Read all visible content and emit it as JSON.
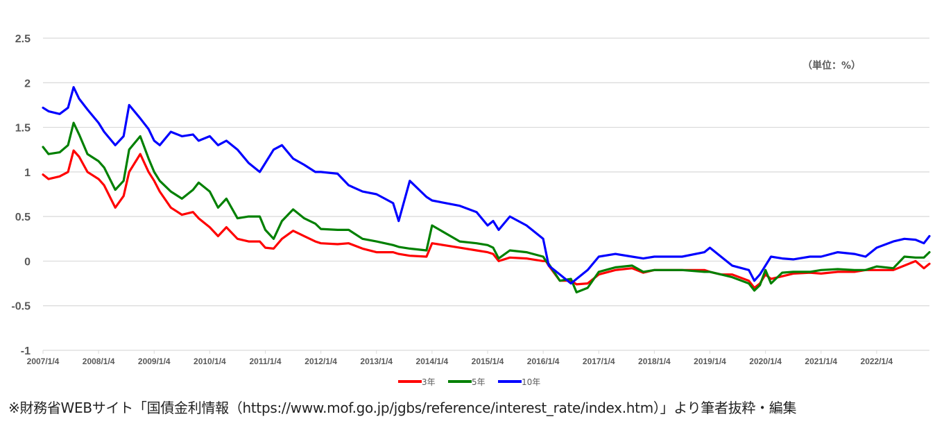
{
  "chart_data": {
    "type": "line",
    "title": "",
    "xlabel": "",
    "ylabel": "",
    "unit_label": "（単位：%）",
    "ylim": [
      -1,
      2.5
    ],
    "y_ticks": [
      "2.5",
      "2",
      "1.5",
      "1",
      "0.5",
      "0",
      "-0.5",
      "-1"
    ],
    "x_tick_labels": [
      "2007/1/4",
      "2008/1/4",
      "2009/1/4",
      "2010/1/4",
      "2011/1/4",
      "2012/1/4",
      "2013/1/4",
      "2014/1/4",
      "2015/1/4",
      "2016/1/4",
      "2017/1/4",
      "2018/1/4",
      "2019/1/4",
      "2020/1/4",
      "2021/1/4",
      "2022/1/4"
    ],
    "x_range": [
      2007.0,
      2022.95
    ],
    "grid": true,
    "legend_position": "bottom-center",
    "series": [
      {
        "name": "3年",
        "color": "#ff0000",
        "x": [
          2007.0,
          2007.1,
          2007.3,
          2007.45,
          2007.55,
          2007.65,
          2007.8,
          2008.0,
          2008.1,
          2008.3,
          2008.45,
          2008.55,
          2008.75,
          2008.9,
          2009.0,
          2009.1,
          2009.3,
          2009.5,
          2009.7,
          2009.8,
          2010.0,
          2010.15,
          2010.3,
          2010.5,
          2010.7,
          2010.9,
          2011.0,
          2011.15,
          2011.3,
          2011.5,
          2011.7,
          2011.9,
          2012.0,
          2012.3,
          2012.5,
          2012.75,
          2013.0,
          2013.15,
          2013.3,
          2013.4,
          2013.6,
          2013.9,
          2014.0,
          2014.5,
          2014.8,
          2015.0,
          2015.1,
          2015.2,
          2015.4,
          2015.7,
          2016.0,
          2016.05,
          2016.1,
          2016.3,
          2016.5,
          2016.6,
          2016.8,
          2017.0,
          2017.3,
          2017.6,
          2017.8,
          2018.0,
          2018.5,
          2018.9,
          2019.0,
          2019.2,
          2019.4,
          2019.7,
          2019.8,
          2019.9,
          2020.0,
          2020.1,
          2020.3,
          2020.5,
          2020.8,
          2021.0,
          2021.3,
          2021.6,
          2021.8,
          2022.0,
          2022.3,
          2022.5,
          2022.7,
          2022.85,
          2022.95
        ],
        "values": [
          0.97,
          0.92,
          0.95,
          1.0,
          1.24,
          1.17,
          1.0,
          0.92,
          0.85,
          0.6,
          0.73,
          1.0,
          1.2,
          1.0,
          0.9,
          0.78,
          0.6,
          0.52,
          0.55,
          0.48,
          0.38,
          0.28,
          0.38,
          0.25,
          0.22,
          0.22,
          0.15,
          0.14,
          0.25,
          0.34,
          0.28,
          0.22,
          0.2,
          0.19,
          0.2,
          0.14,
          0.1,
          0.1,
          0.1,
          0.08,
          0.06,
          0.05,
          0.2,
          0.15,
          0.12,
          0.1,
          0.08,
          0.0,
          0.04,
          0.03,
          0.0,
          0.0,
          -0.05,
          -0.22,
          -0.22,
          -0.26,
          -0.25,
          -0.15,
          -0.1,
          -0.08,
          -0.13,
          -0.1,
          -0.1,
          -0.1,
          -0.12,
          -0.15,
          -0.15,
          -0.22,
          -0.3,
          -0.25,
          -0.15,
          -0.2,
          -0.17,
          -0.14,
          -0.13,
          -0.14,
          -0.12,
          -0.12,
          -0.1,
          -0.1,
          -0.1,
          -0.05,
          0.0,
          -0.08,
          -0.03
        ]
      },
      {
        "name": "5年",
        "color": "#008000",
        "x": [
          2007.0,
          2007.1,
          2007.3,
          2007.45,
          2007.55,
          2007.65,
          2007.8,
          2008.0,
          2008.1,
          2008.3,
          2008.45,
          2008.55,
          2008.75,
          2008.9,
          2009.0,
          2009.1,
          2009.3,
          2009.5,
          2009.7,
          2009.8,
          2010.0,
          2010.15,
          2010.3,
          2010.5,
          2010.7,
          2010.9,
          2011.0,
          2011.15,
          2011.3,
          2011.5,
          2011.7,
          2011.9,
          2012.0,
          2012.3,
          2012.5,
          2012.75,
          2013.0,
          2013.15,
          2013.3,
          2013.4,
          2013.6,
          2013.9,
          2014.0,
          2014.5,
          2014.8,
          2015.0,
          2015.1,
          2015.2,
          2015.4,
          2015.7,
          2016.0,
          2016.05,
          2016.1,
          2016.3,
          2016.5,
          2016.6,
          2016.8,
          2017.0,
          2017.3,
          2017.6,
          2017.8,
          2018.0,
          2018.5,
          2018.9,
          2019.0,
          2019.2,
          2019.4,
          2019.7,
          2019.8,
          2019.9,
          2020.0,
          2020.1,
          2020.3,
          2020.5,
          2020.8,
          2021.0,
          2021.3,
          2021.6,
          2021.8,
          2022.0,
          2022.3,
          2022.5,
          2022.7,
          2022.85,
          2022.95
        ],
        "values": [
          1.28,
          1.2,
          1.22,
          1.3,
          1.55,
          1.42,
          1.2,
          1.12,
          1.05,
          0.8,
          0.9,
          1.25,
          1.4,
          1.15,
          1.0,
          0.9,
          0.78,
          0.7,
          0.8,
          0.88,
          0.78,
          0.6,
          0.7,
          0.48,
          0.5,
          0.5,
          0.35,
          0.25,
          0.45,
          0.58,
          0.48,
          0.42,
          0.36,
          0.35,
          0.35,
          0.25,
          0.22,
          0.2,
          0.18,
          0.16,
          0.14,
          0.12,
          0.4,
          0.22,
          0.2,
          0.18,
          0.15,
          0.03,
          0.12,
          0.1,
          0.05,
          0.0,
          -0.03,
          -0.22,
          -0.2,
          -0.35,
          -0.3,
          -0.12,
          -0.07,
          -0.05,
          -0.12,
          -0.1,
          -0.1,
          -0.12,
          -0.12,
          -0.15,
          -0.18,
          -0.25,
          -0.33,
          -0.27,
          -0.1,
          -0.25,
          -0.13,
          -0.12,
          -0.12,
          -0.1,
          -0.09,
          -0.1,
          -0.1,
          -0.06,
          -0.08,
          0.05,
          0.04,
          0.04,
          0.1
        ]
      },
      {
        "name": "10年",
        "color": "#0000ff",
        "x": [
          2007.0,
          2007.1,
          2007.3,
          2007.45,
          2007.55,
          2007.65,
          2007.8,
          2008.0,
          2008.1,
          2008.3,
          2008.45,
          2008.55,
          2008.75,
          2008.9,
          2009.0,
          2009.1,
          2009.3,
          2009.5,
          2009.7,
          2009.8,
          2010.0,
          2010.15,
          2010.3,
          2010.5,
          2010.7,
          2010.9,
          2011.0,
          2011.15,
          2011.3,
          2011.5,
          2011.7,
          2011.9,
          2012.0,
          2012.3,
          2012.5,
          2012.75,
          2013.0,
          2013.15,
          2013.3,
          2013.4,
          2013.6,
          2013.9,
          2014.0,
          2014.5,
          2014.8,
          2015.0,
          2015.1,
          2015.2,
          2015.4,
          2015.7,
          2016.0,
          2016.05,
          2016.1,
          2016.3,
          2016.5,
          2016.6,
          2016.8,
          2017.0,
          2017.3,
          2017.6,
          2017.8,
          2018.0,
          2018.5,
          2018.9,
          2019.0,
          2019.2,
          2019.4,
          2019.7,
          2019.8,
          2019.9,
          2020.0,
          2020.1,
          2020.3,
          2020.5,
          2020.8,
          2021.0,
          2021.3,
          2021.6,
          2021.8,
          2022.0,
          2022.3,
          2022.5,
          2022.7,
          2022.85,
          2022.95
        ],
        "values": [
          1.72,
          1.68,
          1.65,
          1.72,
          1.95,
          1.82,
          1.7,
          1.55,
          1.45,
          1.3,
          1.4,
          1.75,
          1.6,
          1.48,
          1.35,
          1.3,
          1.45,
          1.4,
          1.42,
          1.35,
          1.4,
          1.3,
          1.35,
          1.25,
          1.1,
          1.0,
          1.1,
          1.25,
          1.3,
          1.15,
          1.08,
          1.0,
          1.0,
          0.98,
          0.85,
          0.78,
          0.75,
          0.7,
          0.65,
          0.45,
          0.9,
          0.72,
          0.68,
          0.62,
          0.55,
          0.4,
          0.45,
          0.35,
          0.5,
          0.4,
          0.25,
          0.1,
          -0.05,
          -0.15,
          -0.25,
          -0.2,
          -0.1,
          0.05,
          0.08,
          0.05,
          0.03,
          0.05,
          0.05,
          0.1,
          0.15,
          0.05,
          -0.05,
          -0.1,
          -0.22,
          -0.15,
          -0.05,
          0.05,
          0.03,
          0.02,
          0.05,
          0.05,
          0.1,
          0.08,
          0.05,
          0.15,
          0.22,
          0.25,
          0.24,
          0.2,
          0.28
        ]
      }
    ]
  },
  "source_note": "※財務省WEBサイト「国債金利情報（https://www.mof.go.jp/jgbs/reference/interest_rate/index.htm）」より筆者抜粋・編集"
}
